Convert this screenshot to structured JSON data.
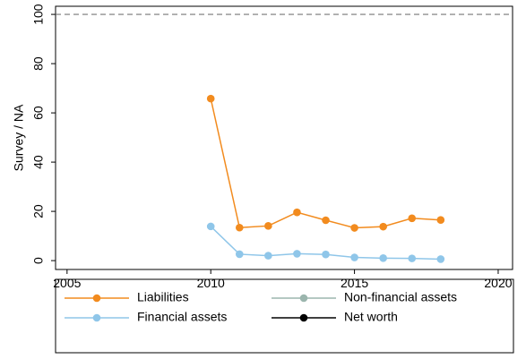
{
  "chart_data": {
    "type": "line",
    "y_label": "Survey / NA",
    "x": [
      2010,
      2011,
      2012,
      2013,
      2014,
      2015,
      2016,
      2017,
      2018
    ],
    "series": [
      {
        "name": "Liabilities",
        "color": "#f28b1e",
        "values": [
          65.8,
          13.4,
          14.1,
          19.6,
          16.4,
          13.3,
          13.8,
          17.2,
          16.5
        ]
      },
      {
        "name": "Non-financial assets",
        "color": "#9bb5ad",
        "values": [
          null,
          null,
          null,
          null,
          null,
          null,
          null,
          null,
          null
        ]
      },
      {
        "name": "Financial assets",
        "color": "#8fc6e9",
        "values": [
          13.9,
          2.6,
          2.0,
          2.8,
          2.5,
          1.3,
          1.0,
          0.9,
          0.6
        ]
      },
      {
        "name": "Net worth",
        "color": "#000000",
        "values": [
          null,
          null,
          null,
          null,
          null,
          null,
          null,
          null,
          null
        ]
      }
    ],
    "hline": 100,
    "xlim": [
      2004.6,
      2020.5
    ],
    "xticks": [
      2005,
      2010,
      2015,
      2020
    ],
    "ylim": [
      -3.6,
      103.3
    ],
    "yticks": [
      0,
      20,
      40,
      60,
      80,
      100
    ]
  }
}
